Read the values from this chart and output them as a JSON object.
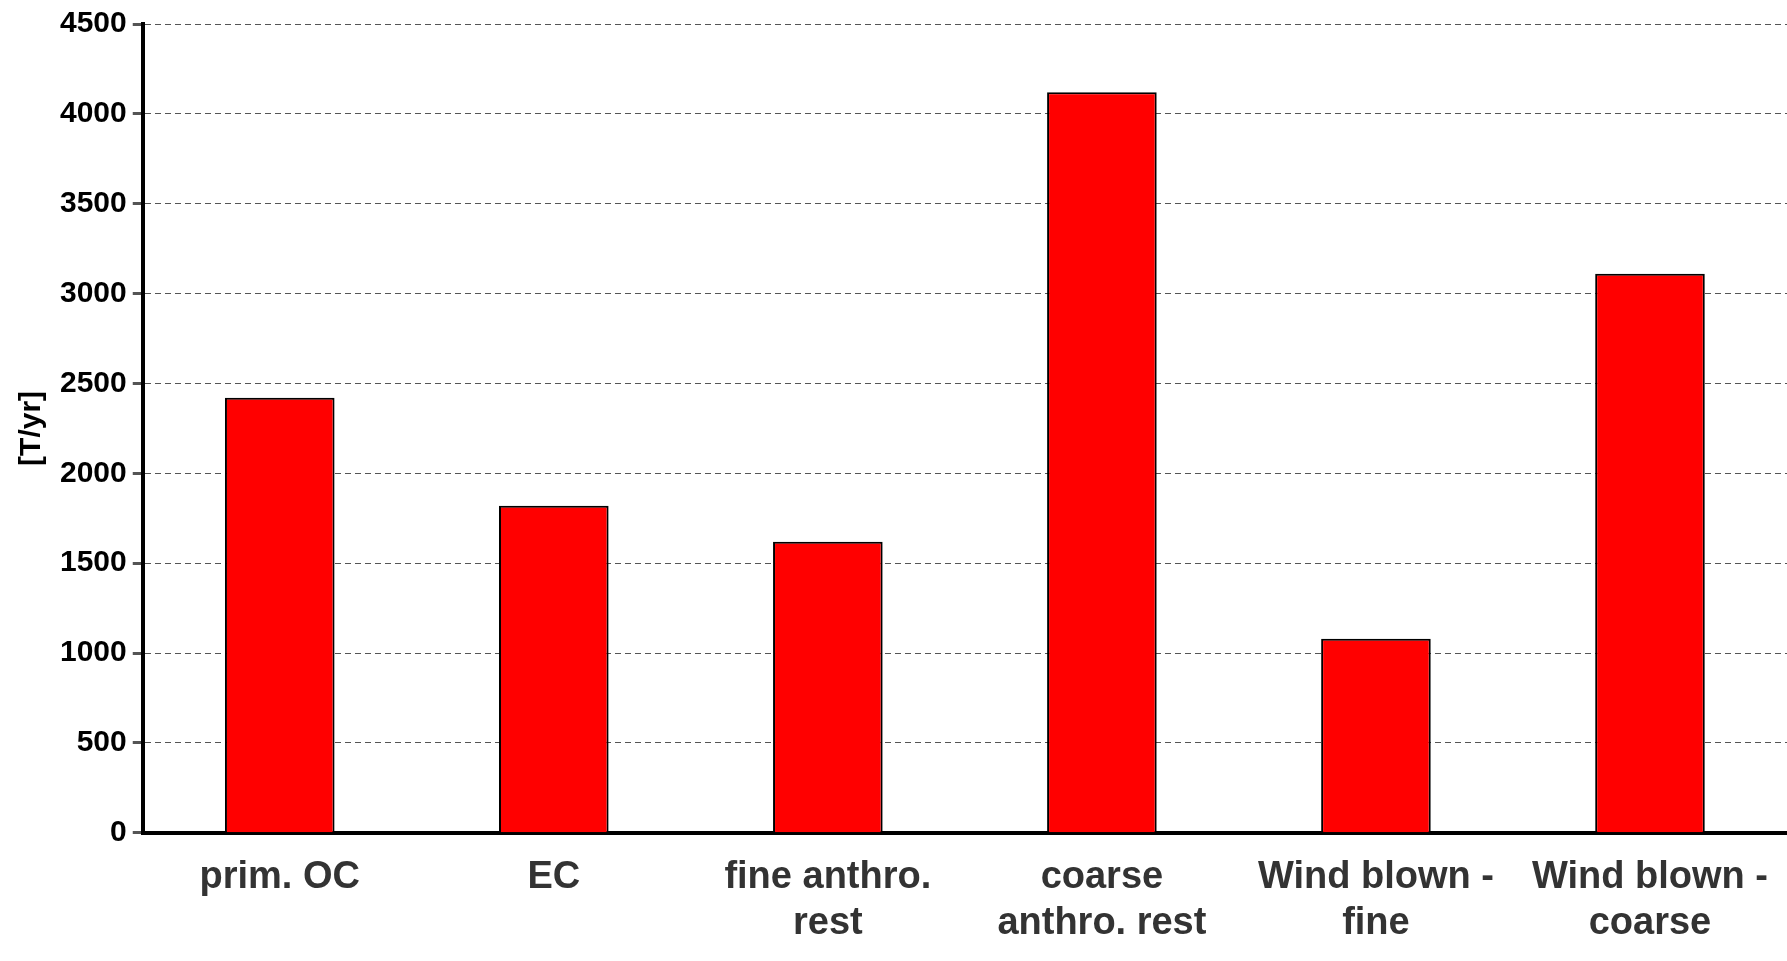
{
  "chart_data": {
    "type": "bar",
    "ylabel": "[T/yr]",
    "categories": [
      "prim. OC",
      "EC",
      "fine anthro. rest",
      "coarse anthro. rest",
      "Wind blown - fine",
      "Wind blown - coarse"
    ],
    "values": [
      2420,
      1820,
      1620,
      4120,
      1080,
      3110
    ],
    "color": "#ff0000",
    "ylim": [
      0,
      4500
    ],
    "yticks": [
      0,
      500,
      1000,
      1500,
      2000,
      2500,
      3000,
      3500,
      4000,
      4500
    ],
    "grid": "y",
    "legend": false
  }
}
